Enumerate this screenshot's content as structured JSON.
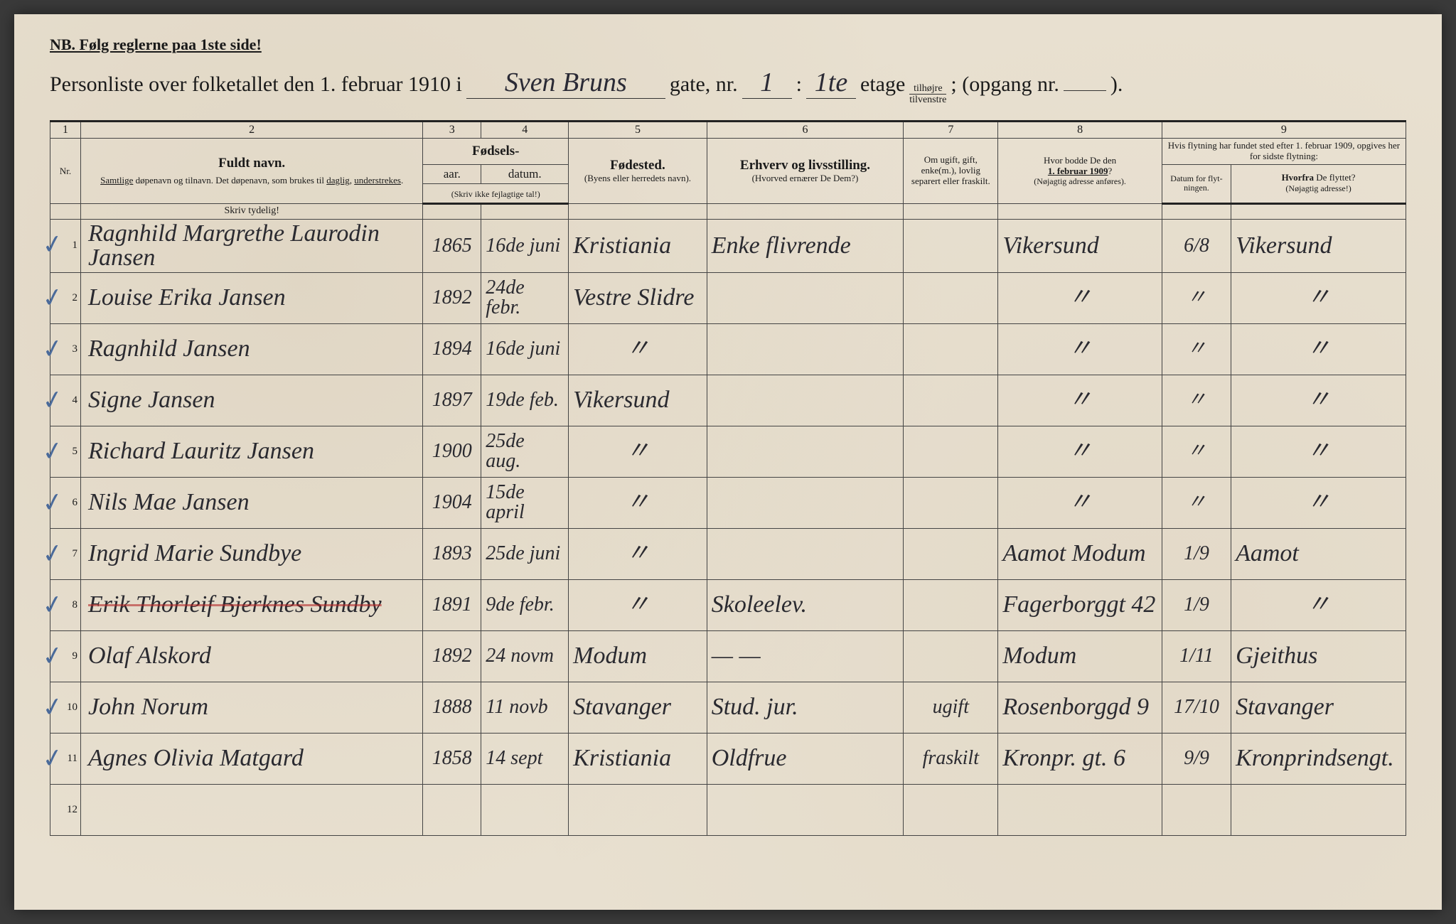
{
  "header": {
    "nb": "NB.  Følg reglerne paa 1ste side!",
    "title_prefix": "Personliste over folketallet den 1. februar 1910 i",
    "street_hw": "Sven Bruns",
    "gate": "gate, nr.",
    "house_nr_hw": "1",
    "colon": ":",
    "floor_hw": "1te",
    "etage": "etage",
    "tilhojre": "tilhøjre",
    "tilvenstre": "tilvenstre",
    "opgang": "; (opgang nr.",
    "opgang_hw": "",
    "close": ")."
  },
  "columns": {
    "c1": "1",
    "c2": "2",
    "c3": "3",
    "c4": "4",
    "c5": "5",
    "c6": "6",
    "c7": "7",
    "c8": "8",
    "c9": "9",
    "nr": "Nr.",
    "fuldt_navn": "Fuldt navn.",
    "navn_sub": "Samtlige døpenavn og tilnavn.  Det døpenavn, som brukes til daglig, understrekes.",
    "fodsels": "Fødsels-",
    "aar": "aar.",
    "datum": "datum.",
    "aar_note": "(Skriv ikke fejlagtige tal!)",
    "fodested": "Fødested.",
    "fodested_sub": "(Byens eller herre­dets navn).",
    "erhverv": "Erhverv og livsstilling.",
    "erhverv_sub": "(Hvorved ernærer De Dem?)",
    "status": "Om ugift, gift, enke(m.), lovlig separert eller fraskilt.",
    "bodde": "Hvor bodde De den 1. februar 1909?",
    "bodde_sub": "(Nøjagtig adresse anføres).",
    "flytning": "Hvis flytning har fundet sted efter 1. februar 1909, opgives her for sidste flytning:",
    "fly_datum": "Datum for flyt­ningen.",
    "fly_hvorfra": "Hvorfra De flyttet? (Nøjagtig adresse!)",
    "skriv_tydelig": "Skriv tydelig!"
  },
  "rows": [
    {
      "nr": "1",
      "check": "✓",
      "name": "Ragnhild Margrethe Laurodin Jansen",
      "year": "1865",
      "date": "16de juni",
      "birthplace": "Kristiania",
      "occupation": "Enke flivrende",
      "status": "",
      "addr1909": "Vikersund",
      "flydate": "6/8",
      "flyfrom": "Vikersund"
    },
    {
      "nr": "2",
      "check": "✓",
      "name": "Louise Erika Jansen",
      "year": "1892",
      "date": "24de febr.",
      "birthplace": "Vestre Slidre",
      "occupation": "",
      "status": "",
      "addr1909": "〃",
      "flydate": "〃",
      "flyfrom": "〃"
    },
    {
      "nr": "3",
      "check": "✓",
      "name": "Ragnhild Jansen",
      "year": "1894",
      "date": "16de juni",
      "birthplace": "〃",
      "occupation": "",
      "status": "",
      "addr1909": "〃",
      "flydate": "〃",
      "flyfrom": "〃"
    },
    {
      "nr": "4",
      "check": "✓",
      "name": "Signe Jansen",
      "year": "1897",
      "date": "19de feb.",
      "birthplace": "Vikersund",
      "occupation": "",
      "status": "",
      "addr1909": "〃",
      "flydate": "〃",
      "flyfrom": "〃"
    },
    {
      "nr": "5",
      "check": "✓",
      "name": "Richard Lauritz Jansen",
      "year": "1900",
      "date": "25de aug.",
      "birthplace": "〃",
      "occupation": "",
      "status": "",
      "addr1909": "〃",
      "flydate": "〃",
      "flyfrom": "〃"
    },
    {
      "nr": "6",
      "check": "✓",
      "name": "Nils Mae Jansen",
      "year": "1904",
      "date": "15de april",
      "birthplace": "〃",
      "occupation": "",
      "status": "",
      "addr1909": "〃",
      "flydate": "〃",
      "flyfrom": "〃"
    },
    {
      "nr": "7",
      "check": "✓",
      "name": "Ingrid Marie Sundbye",
      "year": "1893",
      "date": "25de juni",
      "birthplace": "〃",
      "occupation": "",
      "status": "",
      "addr1909": "Aamot Modum",
      "flydate": "1/9",
      "flyfrom": "Aamot"
    },
    {
      "nr": "8",
      "check": "✓",
      "name": "Erik Thorleif Bjerknes Sundby",
      "year": "1891",
      "date": "9de febr.",
      "birthplace": "〃",
      "occupation": "Skoleelev.",
      "status": "",
      "addr1909": "Fagerborggt 42",
      "flydate": "1/9",
      "flyfrom": "〃",
      "struck": true
    },
    {
      "nr": "9",
      "check": "✓",
      "name": "Olaf Alskord",
      "year": "1892",
      "date": "24 novm",
      "birthplace": "Modum",
      "occupation": "— —",
      "status": "",
      "addr1909": "Modum",
      "flydate": "1/11",
      "flyfrom": "Gjeithus"
    },
    {
      "nr": "10",
      "check": "✓",
      "name": "John Norum",
      "year": "1888",
      "date": "11 novb",
      "birthplace": "Stavanger",
      "occupation": "Stud. jur.",
      "status": "ugift",
      "addr1909": "Rosenborggd 9",
      "flydate": "17/10",
      "flyfrom": "Stavanger"
    },
    {
      "nr": "11",
      "check": "✓",
      "name": "Agnes Olivia Matgard",
      "year": "1858",
      "date": "14 sept",
      "birthplace": "Kristiania",
      "occupation": "Oldfrue",
      "status": "fraskilt",
      "addr1909": "Kronpr. gt. 6",
      "flydate": "9/9",
      "flyfrom": "Kronprindsengt."
    },
    {
      "nr": "12",
      "check": "",
      "name": "",
      "year": "",
      "date": "",
      "birthplace": "",
      "occupation": "",
      "status": "",
      "addr1909": "",
      "flydate": "",
      "flyfrom": ""
    }
  ],
  "style": {
    "page_bg": "#e8e0d0",
    "ink": "#1a1a1a",
    "hw_ink": "#2a2a35",
    "check_color": "#4a6a9a",
    "rule_color": "#444444",
    "heavy_rule": "#222222"
  }
}
